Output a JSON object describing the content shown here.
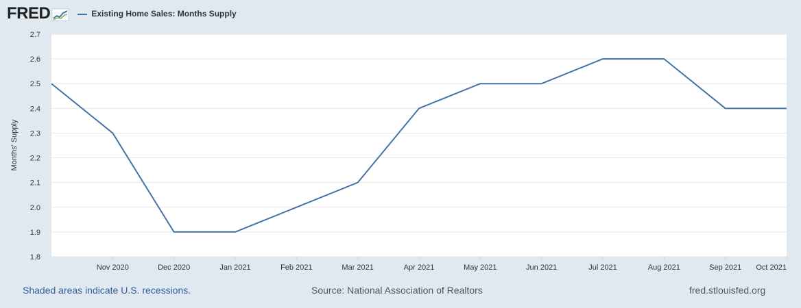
{
  "header": {
    "logo_text": "FRED",
    "series_label": "Existing Home Sales: Months Supply"
  },
  "colors": {
    "line": "#4572a7",
    "grid": "#e6e6e6",
    "plot_bg": "#ffffff",
    "page_bg": "#e1e9f0"
  },
  "chart_data": {
    "type": "line",
    "title": "Existing Home Sales: Months Supply",
    "xlabel": "",
    "ylabel": "Months' Supply",
    "ylim": [
      1.8,
      2.7
    ],
    "yticks": [
      "1.8",
      "1.9",
      "2.0",
      "2.1",
      "2.2",
      "2.3",
      "2.4",
      "2.5",
      "2.6",
      "2.7"
    ],
    "grid": true,
    "x_tick_labels": [
      "Nov 2020",
      "Dec 2020",
      "Jan 2021",
      "Feb 2021",
      "Mar 2021",
      "Apr 2021",
      "May 2021",
      "Jun 2021",
      "Jul 2021",
      "Aug 2021",
      "Sep 2021",
      "Oct 2021"
    ],
    "series": [
      {
        "name": "Existing Home Sales: Months Supply",
        "x": [
          "Oct 2020",
          "Nov 2020",
          "Dec 2020",
          "Jan 2021",
          "Feb 2021",
          "Mar 2021",
          "Apr 2021",
          "May 2021",
          "Jun 2021",
          "Jul 2021",
          "Aug 2021",
          "Sep 2021",
          "Oct 2021"
        ],
        "values": [
          2.5,
          2.3,
          1.9,
          1.9,
          2.0,
          2.1,
          2.4,
          2.5,
          2.5,
          2.6,
          2.6,
          2.4,
          2.4
        ]
      }
    ]
  },
  "footer": {
    "recession_note": "Shaded areas indicate U.S. recessions.",
    "source": "Source: National Association of Realtors",
    "url": "fred.stlouisfed.org"
  }
}
